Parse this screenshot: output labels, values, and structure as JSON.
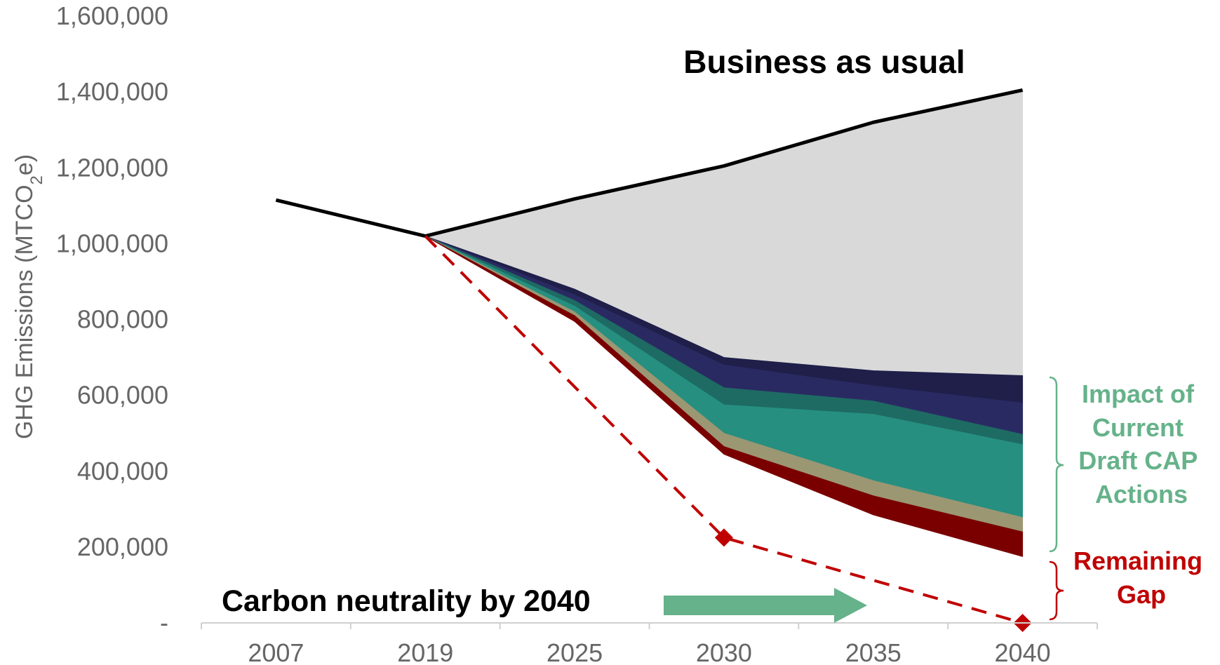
{
  "chart_data": {
    "type": "area",
    "categories": [
      "2007",
      "2019",
      "2025",
      "2030",
      "2035",
      "2040"
    ],
    "ylabel_parts": [
      "GHG Emissions (MTCO",
      "2",
      "e)"
    ],
    "y_tick_labels": [
      "-",
      "200,000",
      "400,000",
      "600,000",
      "800,000",
      "1,000,000",
      "1,200,000",
      "1,400,000",
      "1,600,000"
    ],
    "y_ticks": [
      0,
      200000,
      400000,
      600000,
      800000,
      1000000,
      1200000,
      1400000,
      1600000
    ],
    "ylim": [
      0,
      1600000
    ],
    "grid": false,
    "business_as_usual": {
      "label": "Business as usual",
      "values": [
        1115000,
        1020000,
        1118000,
        1205000,
        1320000,
        1405000
      ],
      "color": "#000000"
    },
    "stack": {
      "x_index": [
        1,
        2,
        3,
        4,
        5
      ],
      "boundaries": [
        [
          1020000,
          880000,
          700000,
          665000,
          652000
        ],
        [
          1020000,
          865000,
          680000,
          625000,
          580000
        ],
        [
          1020000,
          850000,
          620000,
          585000,
          497000
        ],
        [
          1020000,
          835000,
          575000,
          550000,
          470000
        ],
        [
          1020000,
          820000,
          500000,
          375000,
          278000
        ],
        [
          1020000,
          810000,
          465000,
          335000,
          240000
        ],
        [
          1020000,
          795000,
          445000,
          285000,
          175000
        ]
      ],
      "colors": [
        "#d9d9d9",
        "#1f1f4a",
        "#2a2a63",
        "#1e6b63",
        "#268f80",
        "#9b9772",
        "#7a0000"
      ]
    },
    "target": {
      "label": "Carbon neutrality by 2040",
      "x_index": [
        1,
        3,
        5
      ],
      "values": [
        1020000,
        225000,
        0
      ],
      "color": "#c00000"
    },
    "annotations": {
      "impact": [
        "Impact of",
        "Current",
        "Draft CAP",
        "Actions"
      ],
      "impact_color": "#66b28a",
      "gap": [
        "Remaining",
        "Gap"
      ],
      "gap_color": "#c00000",
      "arrow_color": "#66b28a"
    }
  }
}
